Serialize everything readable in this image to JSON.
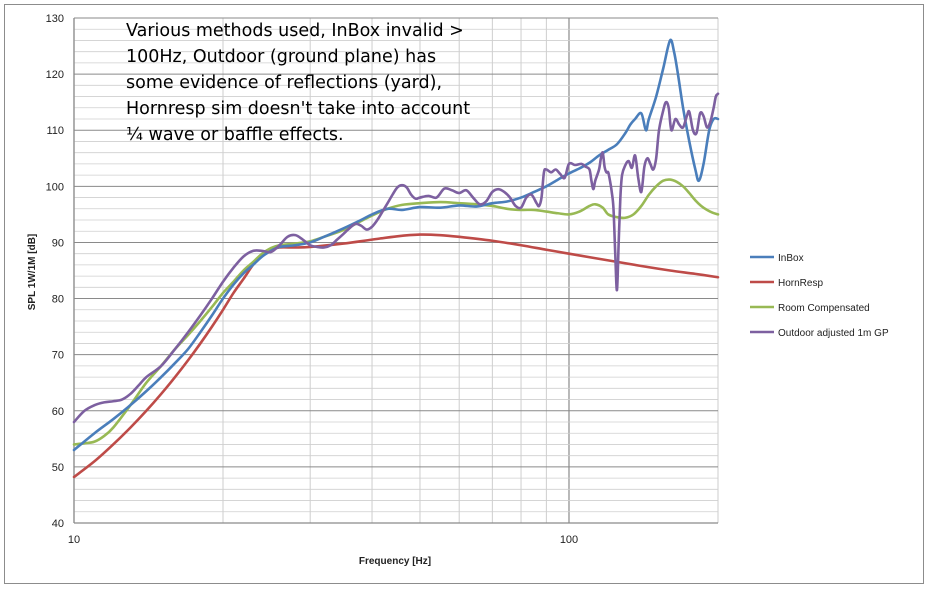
{
  "chart_data": {
    "type": "line",
    "title": "",
    "xlabel": "Frequency [Hz]",
    "ylabel": "SPL 1W/1M [dB]",
    "xscale": "log",
    "xlim": [
      10,
      200
    ],
    "ylim": [
      40,
      130
    ],
    "yticks": [
      40,
      50,
      60,
      70,
      80,
      90,
      100,
      110,
      120,
      130
    ],
    "xtick_labels": [
      {
        "value": 10,
        "label": "10"
      },
      {
        "value": 100,
        "label": "100"
      }
    ],
    "grid": true,
    "legend_position": "right",
    "annotation": "Various methods used, InBox invalid >\n100Hz, Outdoor (ground plane) has\nsome evidence of reflections (yard),\nHornresp sim doesn't take into account\n¼ wave or baffle effects.",
    "series": [
      {
        "name": "InBox",
        "color": "#4a7ebb",
        "points": [
          [
            10,
            53
          ],
          [
            11,
            56
          ],
          [
            12,
            58.5
          ],
          [
            13,
            61
          ],
          [
            14,
            63.5
          ],
          [
            15,
            66
          ],
          [
            16,
            68.5
          ],
          [
            17,
            71
          ],
          [
            18,
            74
          ],
          [
            19,
            77
          ],
          [
            20,
            80
          ],
          [
            21,
            82.5
          ],
          [
            22,
            84.5
          ],
          [
            23,
            86
          ],
          [
            24,
            87.5
          ],
          [
            25,
            88.5
          ],
          [
            26,
            89.2
          ],
          [
            28,
            89.5
          ],
          [
            30,
            90
          ],
          [
            32,
            91
          ],
          [
            35,
            92.5
          ],
          [
            38,
            94
          ],
          [
            40,
            95
          ],
          [
            43,
            96
          ],
          [
            46,
            95.8
          ],
          [
            50,
            96.3
          ],
          [
            55,
            96.2
          ],
          [
            60,
            96.6
          ],
          [
            65,
            96.4
          ],
          [
            70,
            97
          ],
          [
            75,
            97.3
          ],
          [
            80,
            98
          ],
          [
            85,
            99
          ],
          [
            90,
            100
          ],
          [
            95,
            101.2
          ],
          [
            100,
            102.3
          ],
          [
            105,
            103.2
          ],
          [
            110,
            104.2
          ],
          [
            115,
            105.5
          ],
          [
            120,
            106.5
          ],
          [
            125,
            107.5
          ],
          [
            130,
            109.5
          ],
          [
            133,
            111
          ],
          [
            136,
            112
          ],
          [
            140,
            113
          ],
          [
            143,
            110
          ],
          [
            145,
            112
          ],
          [
            150,
            116
          ],
          [
            155,
            121
          ],
          [
            160,
            126
          ],
          [
            163,
            124
          ],
          [
            166,
            120
          ],
          [
            170,
            114
          ],
          [
            175,
            108
          ],
          [
            180,
            103
          ],
          [
            183,
            101
          ],
          [
            187,
            104
          ],
          [
            192,
            110
          ],
          [
            196,
            112
          ],
          [
            200,
            112
          ]
        ]
      },
      {
        "name": "HornResp",
        "color": "#be4b48",
        "points": [
          [
            10,
            48.2
          ],
          [
            11,
            51
          ],
          [
            12,
            54
          ],
          [
            13,
            57
          ],
          [
            14,
            60
          ],
          [
            15,
            63
          ],
          [
            16,
            66
          ],
          [
            17,
            69
          ],
          [
            18,
            72
          ],
          [
            19,
            75
          ],
          [
            20,
            78
          ],
          [
            21,
            81
          ],
          [
            22,
            83.5
          ],
          [
            23,
            86
          ],
          [
            24,
            87.8
          ],
          [
            25,
            88.7
          ],
          [
            26,
            89.1
          ],
          [
            28,
            89.1
          ],
          [
            30,
            89.2
          ],
          [
            35,
            89.8
          ],
          [
            40,
            90.5
          ],
          [
            45,
            91.1
          ],
          [
            50,
            91.4
          ],
          [
            55,
            91.3
          ],
          [
            60,
            91
          ],
          [
            70,
            90.3
          ],
          [
            80,
            89.5
          ],
          [
            90,
            88.7
          ],
          [
            100,
            88
          ],
          [
            120,
            86.8
          ],
          [
            140,
            85.8
          ],
          [
            160,
            85
          ],
          [
            180,
            84.4
          ],
          [
            200,
            83.8
          ]
        ]
      },
      {
        "name": "Room Compensated",
        "color": "#98b954",
        "points": [
          [
            10,
            54
          ],
          [
            10.5,
            54.2
          ],
          [
            11,
            54.5
          ],
          [
            11.5,
            55.5
          ],
          [
            12,
            57
          ],
          [
            13,
            61
          ],
          [
            14,
            65
          ],
          [
            15,
            68
          ],
          [
            16,
            71
          ],
          [
            17,
            73.5
          ],
          [
            18,
            76
          ],
          [
            19,
            78.5
          ],
          [
            20,
            81
          ],
          [
            21,
            83
          ],
          [
            22,
            85
          ],
          [
            23,
            86.5
          ],
          [
            24,
            88
          ],
          [
            25,
            89
          ],
          [
            26,
            89.5
          ],
          [
            28,
            89.8
          ],
          [
            30,
            90.2
          ],
          [
            32,
            91
          ],
          [
            35,
            92.2
          ],
          [
            38,
            93.8
          ],
          [
            40,
            94.8
          ],
          [
            43,
            96
          ],
          [
            46,
            96.7
          ],
          [
            50,
            97
          ],
          [
            55,
            97.2
          ],
          [
            60,
            97
          ],
          [
            65,
            96.8
          ],
          [
            70,
            96.5
          ],
          [
            75,
            96
          ],
          [
            80,
            95.8
          ],
          [
            85,
            95.8
          ],
          [
            90,
            95.5
          ],
          [
            95,
            95.2
          ],
          [
            100,
            95
          ],
          [
            105,
            95.5
          ],
          [
            110,
            96.5
          ],
          [
            113,
            96.8
          ],
          [
            117,
            96.2
          ],
          [
            120,
            95
          ],
          [
            125,
            94.5
          ],
          [
            130,
            94.4
          ],
          [
            135,
            95
          ],
          [
            140,
            96.5
          ],
          [
            145,
            98.5
          ],
          [
            150,
            100
          ],
          [
            155,
            101
          ],
          [
            160,
            101.2
          ],
          [
            165,
            100.8
          ],
          [
            170,
            100
          ],
          [
            175,
            98.8
          ],
          [
            180,
            97.5
          ],
          [
            185,
            96.5
          ],
          [
            190,
            95.8
          ],
          [
            195,
            95.3
          ],
          [
            200,
            95
          ]
        ]
      },
      {
        "name": "Outdoor adjusted 1m GP",
        "color": "#7d60a0",
        "points": [
          [
            10,
            58
          ],
          [
            10.5,
            60
          ],
          [
            11,
            61
          ],
          [
            11.5,
            61.5
          ],
          [
            12,
            61.7
          ],
          [
            12.5,
            62
          ],
          [
            13,
            63
          ],
          [
            13.5,
            64.5
          ],
          [
            14,
            66
          ],
          [
            15,
            68
          ],
          [
            16,
            71
          ],
          [
            17,
            74
          ],
          [
            18,
            77
          ],
          [
            19,
            80
          ],
          [
            20,
            83
          ],
          [
            21,
            85.5
          ],
          [
            22,
            87.5
          ],
          [
            23,
            88.5
          ],
          [
            24,
            88.5
          ],
          [
            25,
            88.3
          ],
          [
            26,
            89.5
          ],
          [
            27,
            91
          ],
          [
            28,
            91.3
          ],
          [
            29,
            90.5
          ],
          [
            30,
            89.5
          ],
          [
            31,
            89.2
          ],
          [
            32,
            89.1
          ],
          [
            33,
            89.5
          ],
          [
            34,
            90.5
          ],
          [
            35,
            91.5
          ],
          [
            36,
            92.5
          ],
          [
            37,
            93.3
          ],
          [
            38,
            93
          ],
          [
            39,
            92.3
          ],
          [
            40,
            92.8
          ],
          [
            41,
            94
          ],
          [
            42,
            95.5
          ],
          [
            43,
            97
          ],
          [
            44,
            98.5
          ],
          [
            45,
            99.8
          ],
          [
            46,
            100.2
          ],
          [
            47,
            99.8
          ],
          [
            48,
            98.5
          ],
          [
            49,
            97.8
          ],
          [
            50,
            98
          ],
          [
            52,
            98.3
          ],
          [
            54,
            98
          ],
          [
            56,
            99.6
          ],
          [
            58,
            99.3
          ],
          [
            60,
            98.8
          ],
          [
            62,
            99.3
          ],
          [
            64,
            98
          ],
          [
            66,
            96.8
          ],
          [
            68,
            97.3
          ],
          [
            70,
            99
          ],
          [
            72,
            99.5
          ],
          [
            74,
            99
          ],
          [
            76,
            98
          ],
          [
            78,
            96.5
          ],
          [
            80,
            96.2
          ],
          [
            82,
            98
          ],
          [
            84,
            98.5
          ],
          [
            86,
            97
          ],
          [
            87,
            96.5
          ],
          [
            88,
            98
          ],
          [
            89,
            102.5
          ],
          [
            90,
            103
          ],
          [
            92,
            102.5
          ],
          [
            94,
            103
          ],
          [
            96,
            102.2
          ],
          [
            98,
            101.5
          ],
          [
            100,
            104
          ],
          [
            103,
            103.8
          ],
          [
            106,
            104
          ],
          [
            108,
            103.5
          ],
          [
            110,
            103
          ],
          [
            111,
            101
          ],
          [
            112,
            99.5
          ],
          [
            113,
            101
          ],
          [
            115,
            103
          ],
          [
            116,
            105
          ],
          [
            117,
            106
          ],
          [
            118,
            103.5
          ],
          [
            119,
            102.5
          ],
          [
            120,
            102.5
          ],
          [
            121,
            101
          ],
          [
            122,
            99
          ],
          [
            123,
            96
          ],
          [
            124,
            88
          ],
          [
            125,
            81.5
          ],
          [
            126,
            90
          ],
          [
            127,
            98
          ],
          [
            128,
            102
          ],
          [
            130,
            103.8
          ],
          [
            132,
            104.5
          ],
          [
            134,
            103.3
          ],
          [
            136,
            105.5
          ],
          [
            138,
            101.5
          ],
          [
            140,
            99
          ],
          [
            142,
            103.5
          ],
          [
            144,
            105
          ],
          [
            146,
            104
          ],
          [
            148,
            103
          ],
          [
            150,
            105
          ],
          [
            152,
            110
          ],
          [
            155,
            113.5
          ],
          [
            157,
            115
          ],
          [
            159,
            114
          ],
          [
            161,
            110
          ],
          [
            164,
            112
          ],
          [
            167,
            111
          ],
          [
            170,
            110.5
          ],
          [
            173,
            112.5
          ],
          [
            175,
            113.3
          ],
          [
            178,
            110
          ],
          [
            181,
            109.5
          ],
          [
            184,
            113
          ],
          [
            187,
            112.5
          ],
          [
            190,
            110.5
          ],
          [
            193,
            111.5
          ],
          [
            196,
            114
          ],
          [
            198,
            116
          ],
          [
            200,
            116.5
          ]
        ]
      }
    ]
  }
}
